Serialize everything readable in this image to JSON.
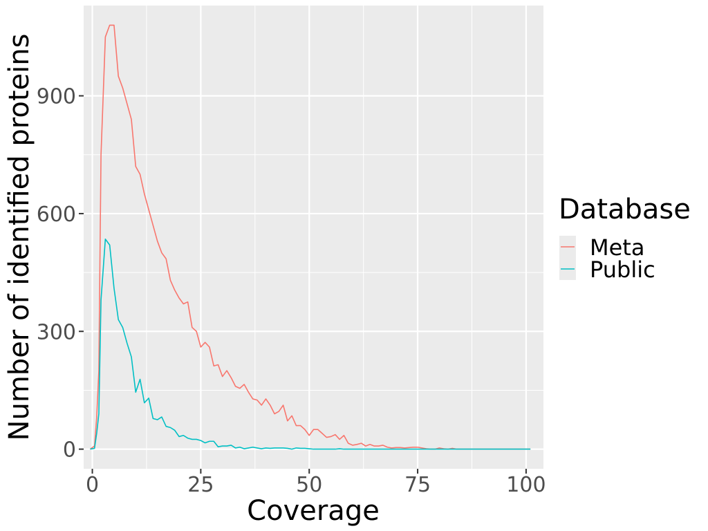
{
  "chart_data": {
    "type": "line",
    "xlabel": "Coverage",
    "ylabel": "Number of identified proteins",
    "xlim": [
      -2,
      104
    ],
    "ylim": [
      -50,
      1130
    ],
    "xticks": [
      0,
      25,
      50,
      75,
      100
    ],
    "yticks": [
      0,
      300,
      600,
      900
    ],
    "x_tick_labels": [
      "0",
      "25",
      "50",
      "75",
      "100"
    ],
    "y_tick_labels": [
      "0",
      "300",
      "600",
      "900"
    ],
    "grid": true,
    "legend": {
      "title": "Database",
      "position": "right"
    },
    "series": [
      {
        "name": "Meta",
        "color": "#F8766D",
        "points": [
          [
            -0.5,
            0
          ],
          [
            0.5,
            8
          ],
          [
            1,
            80
          ],
          [
            1.5,
            200
          ],
          [
            2,
            750
          ],
          [
            3,
            1050
          ],
          [
            4,
            1080
          ],
          [
            5,
            1080
          ],
          [
            6,
            950
          ],
          [
            7,
            920
          ],
          [
            8,
            880
          ],
          [
            9,
            840
          ],
          [
            10,
            720
          ],
          [
            11,
            700
          ],
          [
            12,
            650
          ],
          [
            13,
            610
          ],
          [
            14,
            570
          ],
          [
            15,
            530
          ],
          [
            16,
            500
          ],
          [
            17,
            485
          ],
          [
            18,
            430
          ],
          [
            19,
            405
          ],
          [
            20,
            385
          ],
          [
            21,
            370
          ],
          [
            22,
            375
          ],
          [
            23,
            310
          ],
          [
            24,
            300
          ],
          [
            25,
            260
          ],
          [
            26,
            272
          ],
          [
            27,
            260
          ],
          [
            28,
            212
          ],
          [
            29,
            215
          ],
          [
            30,
            185
          ],
          [
            31,
            200
          ],
          [
            32,
            182
          ],
          [
            33,
            160
          ],
          [
            34,
            155
          ],
          [
            35,
            165
          ],
          [
            36,
            145
          ],
          [
            37,
            128
          ],
          [
            38,
            125
          ],
          [
            39,
            112
          ],
          [
            40,
            128
          ],
          [
            41,
            112
          ],
          [
            42,
            90
          ],
          [
            43,
            96
          ],
          [
            44,
            112
          ],
          [
            45,
            72
          ],
          [
            46,
            85
          ],
          [
            47,
            60
          ],
          [
            48,
            60
          ],
          [
            49,
            50
          ],
          [
            50,
            35
          ],
          [
            51,
            50
          ],
          [
            52,
            50
          ],
          [
            53,
            40
          ],
          [
            54,
            30
          ],
          [
            55,
            32
          ],
          [
            56,
            37
          ],
          [
            57,
            25
          ],
          [
            58,
            35
          ],
          [
            59,
            15
          ],
          [
            60,
            10
          ],
          [
            61,
            12
          ],
          [
            62,
            15
          ],
          [
            63,
            8
          ],
          [
            64,
            12
          ],
          [
            65,
            8
          ],
          [
            66,
            8
          ],
          [
            67,
            10
          ],
          [
            68,
            5
          ],
          [
            69,
            3
          ],
          [
            70,
            4
          ],
          [
            71,
            4
          ],
          [
            72,
            3
          ],
          [
            73,
            4
          ],
          [
            74,
            5
          ],
          [
            75,
            5
          ],
          [
            76,
            3
          ],
          [
            77,
            1
          ],
          [
            78,
            0
          ],
          [
            79,
            0
          ],
          [
            80,
            3
          ],
          [
            81,
            1
          ],
          [
            82,
            0
          ],
          [
            83,
            2
          ],
          [
            84,
            0
          ],
          [
            85,
            0
          ],
          [
            86,
            0
          ],
          [
            87,
            0
          ],
          [
            88,
            0
          ],
          [
            89,
            0
          ],
          [
            90,
            0
          ],
          [
            91,
            0
          ],
          [
            92,
            0
          ],
          [
            93,
            0
          ],
          [
            94,
            0
          ],
          [
            95,
            0
          ],
          [
            96,
            0
          ],
          [
            97,
            0
          ],
          [
            98,
            0
          ],
          [
            99,
            0
          ],
          [
            100,
            0
          ],
          [
            101,
            0
          ]
        ]
      },
      {
        "name": "Public",
        "color": "#00BFC4",
        "points": [
          [
            -0.5,
            0
          ],
          [
            0.5,
            2
          ],
          [
            1,
            40
          ],
          [
            1.5,
            90
          ],
          [
            2,
            380
          ],
          [
            3,
            535
          ],
          [
            4,
            520
          ],
          [
            5,
            410
          ],
          [
            6,
            330
          ],
          [
            7,
            310
          ],
          [
            8,
            270
          ],
          [
            9,
            235
          ],
          [
            10,
            145
          ],
          [
            11,
            178
          ],
          [
            12,
            118
          ],
          [
            13,
            130
          ],
          [
            14,
            78
          ],
          [
            15,
            75
          ],
          [
            16,
            82
          ],
          [
            17,
            58
          ],
          [
            18,
            55
          ],
          [
            19,
            48
          ],
          [
            20,
            32
          ],
          [
            21,
            35
          ],
          [
            22,
            28
          ],
          [
            23,
            25
          ],
          [
            24,
            25
          ],
          [
            25,
            22
          ],
          [
            26,
            16
          ],
          [
            27,
            20
          ],
          [
            28,
            20
          ],
          [
            29,
            6
          ],
          [
            30,
            8
          ],
          [
            31,
            8
          ],
          [
            32,
            10
          ],
          [
            33,
            3
          ],
          [
            34,
            5
          ],
          [
            35,
            1
          ],
          [
            36,
            3
          ],
          [
            37,
            5
          ],
          [
            38,
            3
          ],
          [
            39,
            1
          ],
          [
            40,
            3
          ],
          [
            41,
            2
          ],
          [
            42,
            3
          ],
          [
            43,
            3
          ],
          [
            44,
            3
          ],
          [
            45,
            2
          ],
          [
            46,
            0
          ],
          [
            47,
            3
          ],
          [
            48,
            2
          ],
          [
            49,
            2
          ],
          [
            50,
            1
          ],
          [
            51,
            0
          ],
          [
            52,
            0
          ],
          [
            53,
            0
          ],
          [
            54,
            0
          ],
          [
            55,
            0
          ],
          [
            56,
            0
          ],
          [
            57,
            1
          ],
          [
            58,
            0
          ],
          [
            59,
            0
          ],
          [
            60,
            0
          ],
          [
            61,
            0
          ],
          [
            62,
            0
          ],
          [
            63,
            0
          ],
          [
            64,
            0
          ],
          [
            65,
            0
          ],
          [
            66,
            0
          ],
          [
            67,
            0
          ],
          [
            68,
            0
          ],
          [
            69,
            0
          ],
          [
            70,
            0
          ],
          [
            71,
            0
          ],
          [
            72,
            0
          ],
          [
            73,
            0
          ],
          [
            74,
            0
          ],
          [
            75,
            0
          ],
          [
            76,
            0
          ],
          [
            77,
            0
          ],
          [
            78,
            0
          ],
          [
            79,
            0
          ],
          [
            80,
            0
          ],
          [
            81,
            0
          ],
          [
            82,
            0
          ],
          [
            83,
            0
          ],
          [
            84,
            0
          ],
          [
            85,
            0
          ],
          [
            86,
            0
          ],
          [
            87,
            0
          ],
          [
            88,
            0
          ],
          [
            89,
            0
          ],
          [
            90,
            0
          ],
          [
            91,
            0
          ],
          [
            92,
            0
          ],
          [
            93,
            0
          ],
          [
            94,
            0
          ],
          [
            95,
            0
          ],
          [
            96,
            0
          ],
          [
            97,
            0
          ],
          [
            98,
            0
          ],
          [
            99,
            0
          ],
          [
            100,
            0
          ],
          [
            101,
            0
          ]
        ]
      }
    ]
  }
}
